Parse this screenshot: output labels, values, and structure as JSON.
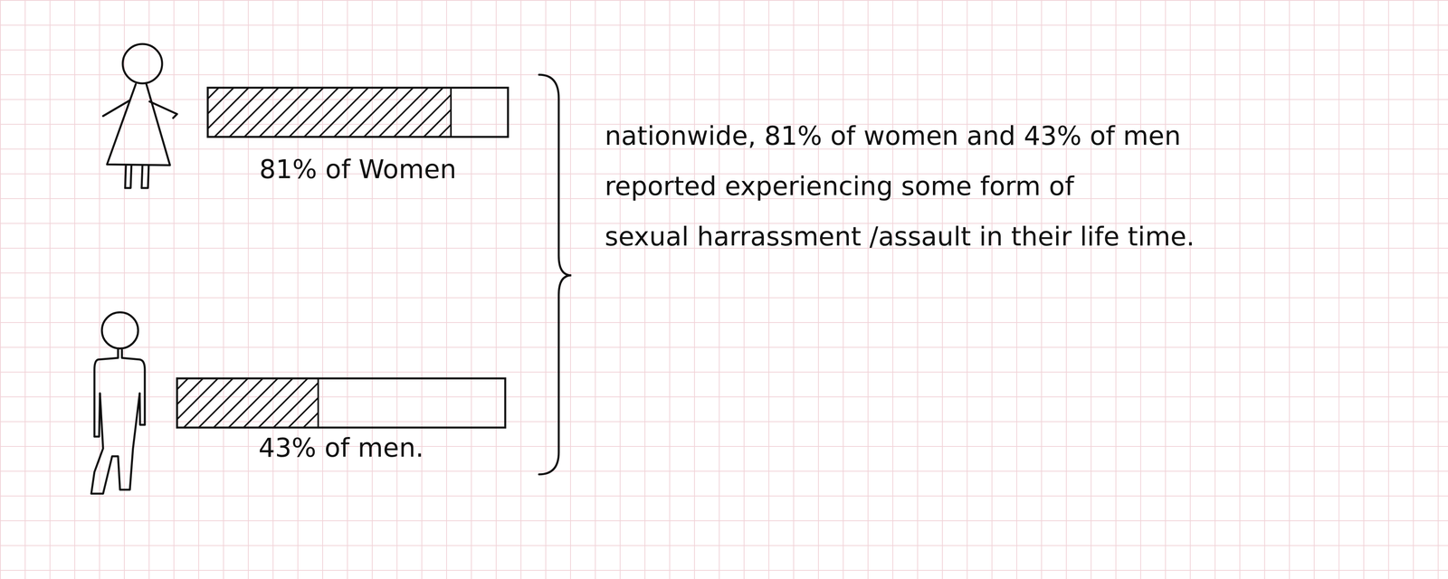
{
  "chart_data": {
    "type": "bar",
    "orientation": "horizontal",
    "categories": [
      "81% of Women",
      "43% of men."
    ],
    "values": [
      81,
      43
    ],
    "xlim": [
      0,
      100
    ],
    "tick_labels": false,
    "color": "#111111",
    "annotation": [
      "nationwide, 81% of women and 43% of men",
      "reported experiencing some form of",
      "sexual harrassment /assault in their life time."
    ]
  }
}
